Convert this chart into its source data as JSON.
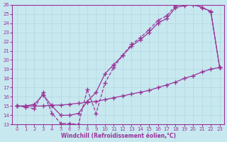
{
  "xlabel": "Windchill (Refroidissement éolien,°C)",
  "bg_color": "#c8e8f0",
  "line_color": "#993399",
  "xlim": [
    -0.5,
    23.5
  ],
  "ylim": [
    13,
    26
  ],
  "xticks": [
    0,
    1,
    2,
    3,
    4,
    5,
    6,
    7,
    8,
    9,
    10,
    11,
    12,
    13,
    14,
    15,
    16,
    17,
    18,
    19,
    20,
    21,
    22,
    23
  ],
  "yticks": [
    13,
    14,
    15,
    16,
    17,
    18,
    19,
    20,
    21,
    22,
    23,
    24,
    25,
    26
  ],
  "curve1_x": [
    0,
    1,
    2,
    3,
    4,
    5,
    6,
    7,
    8,
    9,
    10,
    11,
    12,
    13,
    14,
    15,
    16,
    17,
    18,
    19,
    20,
    21,
    22,
    23
  ],
  "curve1_y": [
    15.0,
    14.9,
    14.7,
    16.5,
    14.2,
    13.1,
    13.1,
    13.0,
    16.8,
    14.2,
    17.5,
    19.2,
    20.5,
    21.7,
    22.4,
    23.3,
    24.3,
    24.8,
    25.9,
    26.1,
    26.2,
    25.7,
    25.2,
    19.2
  ],
  "curve2_x": [
    0,
    1,
    2,
    3,
    4,
    5,
    6,
    7,
    8,
    9,
    10,
    11,
    12,
    13,
    14,
    15,
    16,
    17,
    18,
    19,
    20,
    21,
    22,
    23
  ],
  "curve2_y": [
    15.0,
    15.0,
    15.2,
    16.2,
    15.0,
    14.0,
    14.0,
    14.2,
    15.5,
    16.5,
    18.5,
    19.5,
    20.5,
    21.5,
    22.2,
    23.0,
    24.0,
    24.5,
    25.7,
    25.9,
    26.0,
    25.7,
    25.3,
    19.2
  ],
  "curve3_x": [
    0,
    1,
    2,
    3,
    4,
    5,
    6,
    7,
    8,
    9,
    10,
    11,
    12,
    13,
    14,
    15,
    16,
    17,
    18,
    19,
    20,
    21,
    22,
    23
  ],
  "curve3_y": [
    15.0,
    15.0,
    15.0,
    15.0,
    15.1,
    15.1,
    15.2,
    15.3,
    15.4,
    15.5,
    15.7,
    15.9,
    16.1,
    16.3,
    16.5,
    16.7,
    17.0,
    17.3,
    17.6,
    18.0,
    18.3,
    18.7,
    19.0,
    19.2
  ]
}
